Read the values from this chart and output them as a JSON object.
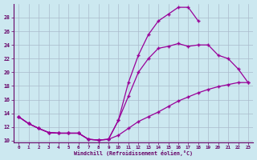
{
  "xlabel": "Windchill (Refroidissement éolien,°C)",
  "background_color": "#cce8f0",
  "line_color": "#990099",
  "grid_color": "#aabbcc",
  "xlim_min": -0.5,
  "xlim_max": 23.5,
  "ylim_min": 9.8,
  "ylim_max": 30.0,
  "yticks": [
    10,
    12,
    14,
    16,
    18,
    20,
    22,
    24,
    26,
    28
  ],
  "xticks": [
    0,
    1,
    2,
    3,
    4,
    5,
    6,
    7,
    8,
    9,
    10,
    11,
    12,
    13,
    14,
    15,
    16,
    17,
    18,
    19,
    20,
    21,
    22,
    23
  ],
  "line1_x": [
    0,
    1,
    2,
    3,
    4,
    5,
    6,
    7,
    8,
    9,
    10,
    11,
    12,
    13,
    14,
    15,
    16,
    17,
    18,
    19,
    20,
    21,
    22,
    23
  ],
  "line1_y": [
    13.5,
    12.5,
    11.8,
    11.2,
    11.1,
    11.1,
    11.1,
    10.2,
    10.1,
    10.2,
    10.8,
    11.8,
    12.8,
    13.5,
    14.2,
    15.0,
    15.8,
    16.4,
    17.0,
    17.5,
    17.9,
    18.2,
    18.5,
    18.5
  ],
  "line2_x": [
    0,
    1,
    2,
    3,
    4,
    5,
    6,
    7,
    8,
    9,
    10,
    11,
    12,
    13,
    14,
    15,
    16,
    17,
    18,
    19,
    20,
    21,
    22,
    23
  ],
  "line2_y": [
    13.5,
    12.5,
    11.8,
    11.2,
    11.1,
    11.1,
    11.1,
    10.2,
    10.1,
    10.2,
    13.0,
    16.5,
    20.0,
    22.0,
    23.5,
    23.8,
    24.2,
    23.8,
    24.0,
    24.0,
    22.5,
    22.0,
    20.5,
    18.5
  ],
  "line3_x": [
    0,
    1,
    2,
    3,
    4,
    5,
    6,
    7,
    8,
    9,
    10,
    11,
    12,
    13,
    14,
    15,
    16,
    17,
    18
  ],
  "line3_y": [
    13.5,
    12.5,
    11.8,
    11.2,
    11.1,
    11.1,
    11.1,
    10.2,
    10.1,
    10.2,
    13.0,
    18.5,
    22.5,
    25.5,
    27.5,
    28.5,
    29.5,
    29.5,
    27.5
  ]
}
